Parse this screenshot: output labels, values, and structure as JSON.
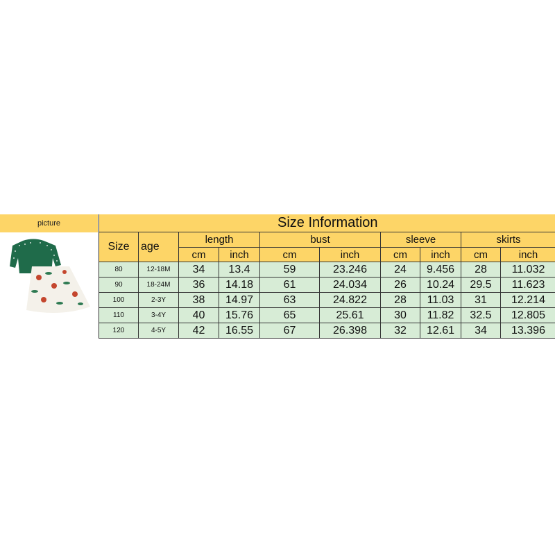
{
  "picture_label": "picture",
  "title": "Size Information",
  "headers": {
    "size": "Size",
    "age": "age",
    "length": "length",
    "bust": "bust",
    "sleeve": "sleeve",
    "skirts": "skirts",
    "cm": "cm",
    "inch": "inch"
  },
  "rows": [
    [
      "80",
      "12-18M",
      "34",
      "13.4",
      "59",
      "23.246",
      "24",
      "9.456",
      "28",
      "11.032"
    ],
    [
      "90",
      "18-24M",
      "36",
      "14.18",
      "61",
      "24.034",
      "26",
      "10.24",
      "29.5",
      "11.623"
    ],
    [
      "100",
      "2-3Y",
      "38",
      "14.97",
      "63",
      "24.822",
      "28",
      "11.03",
      "31",
      "12.214"
    ],
    [
      "110",
      "3-4Y",
      "40",
      "15.76",
      "65",
      "25.61",
      "30",
      "11.82",
      "32.5",
      "12.805"
    ],
    [
      "120",
      "4-5Y",
      "42",
      "16.55",
      "67",
      "26.398",
      "32",
      "12.61",
      "34",
      "13.396"
    ]
  ],
  "colors": {
    "header": "#fdd567",
    "body": "#d7ecd6",
    "sweater": "#1f6b4a"
  }
}
